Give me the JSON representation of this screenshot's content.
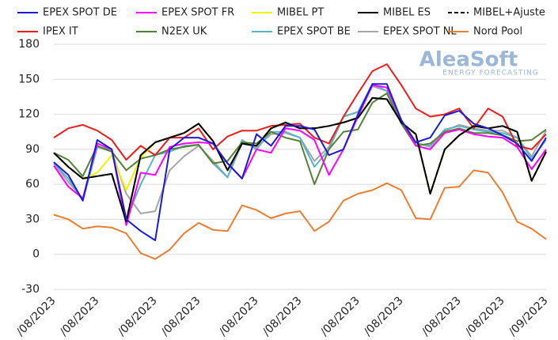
{
  "chart_data": {
    "type": "line",
    "watermark": {
      "brand": "AleaSoft",
      "tagline": "ENERGY FORECASTING"
    },
    "categories": [
      "/08/2023",
      null,
      null,
      "/08/2023",
      null,
      null,
      null,
      "/08/2023",
      null,
      null,
      "/08/2023",
      null,
      null,
      null,
      "/08/2023",
      null,
      null,
      "/08/2023",
      null,
      null,
      null,
      "/08/2023",
      null,
      null,
      "/08/2023",
      null,
      null,
      null,
      "/08/2023",
      null,
      null,
      "/08/2023",
      null,
      null,
      "/09/2023"
    ],
    "ylim": [
      -30,
      180
    ],
    "yticks": [
      -30,
      0,
      30,
      60,
      90,
      120,
      150,
      180
    ],
    "grid": true,
    "series": [
      {
        "name": "Nord Pool",
        "color": "#ed7d31",
        "values": [
          34,
          30,
          22,
          24,
          23,
          18,
          1,
          -4,
          4,
          18,
          27,
          21,
          20,
          42,
          38,
          31,
          35,
          37,
          20,
          28,
          46,
          52,
          55,
          61,
          55,
          31,
          30,
          57,
          58,
          72,
          70,
          53,
          28,
          22,
          13
        ]
      },
      {
        "name": "EPEX SPOT NL",
        "color": "#a6a6a6",
        "values": [
          78,
          62,
          48,
          92,
          88,
          52,
          35,
          37,
          72,
          84,
          93,
          80,
          66,
          95,
          92,
          103,
          104,
          100,
          80,
          92,
          118,
          122,
          144,
          140,
          112,
          96,
          92,
          106,
          111,
          108,
          106,
          106,
          100,
          84,
          106
        ]
      },
      {
        "name": "EPEX SPOT BE",
        "color": "#5ab4c8",
        "values": [
          78,
          65,
          46,
          92,
          90,
          30,
          60,
          85,
          88,
          93,
          94,
          78,
          66,
          98,
          90,
          105,
          105,
          100,
          75,
          90,
          118,
          122,
          146,
          140,
          113,
          95,
          93,
          107,
          110,
          107,
          105,
          104,
          100,
          82,
          98
        ]
      },
      {
        "name": "N2EX UK",
        "color": "#548235",
        "values": [
          87,
          81,
          67,
          93,
          88,
          72,
          82,
          85,
          90,
          92,
          94,
          78,
          80,
          96,
          95,
          105,
          100,
          97,
          60,
          90,
          105,
          107,
          130,
          138,
          112,
          93,
          95,
          105,
          108,
          104,
          104,
          102,
          97,
          98,
          107
        ]
      },
      {
        "name": "IPEX IT",
        "color": "#ee1c1c",
        "values": [
          100,
          108,
          111,
          106,
          98,
          81,
          93,
          85,
          100,
          100,
          108,
          90,
          101,
          106,
          106,
          110,
          111,
          112,
          100,
          95,
          118,
          138,
          157,
          163,
          145,
          125,
          118,
          120,
          125,
          108,
          125,
          118,
          93,
          90,
          103
        ]
      },
      {
        "name": "MIBEL PT",
        "color": "#f2f200",
        "values": [
          87,
          75,
          65,
          70,
          85,
          55,
          83,
          96,
          100,
          104,
          112,
          97,
          72,
          95,
          93,
          108,
          113,
          108,
          108,
          110,
          113,
          117,
          134,
          133,
          113,
          103,
          52,
          90,
          102,
          110,
          108,
          110,
          105,
          63,
          88
        ]
      },
      {
        "name": "EPEX SPOT FR",
        "color": "#ff00ff",
        "values": [
          76,
          58,
          48,
          95,
          90,
          25,
          70,
          68,
          92,
          95,
          96,
          95,
          78,
          65,
          90,
          87,
          108,
          106,
          98,
          68,
          90,
          118,
          145,
          143,
          115,
          93,
          90,
          104,
          107,
          103,
          101,
          100,
          92,
          73,
          90
        ]
      },
      {
        "name": "MIBEL+Ajuste",
        "color": "#000000",
        "dash": true,
        "values": [
          87,
          75,
          65,
          67,
          69,
          28,
          85,
          96,
          100,
          104,
          112,
          97,
          72,
          95,
          93,
          108,
          113,
          108,
          108,
          110,
          113,
          117,
          134,
          133,
          113,
          103,
          52,
          90,
          102,
          110,
          108,
          110,
          105,
          63,
          88
        ]
      },
      {
        "name": "MIBEL ES",
        "color": "#000000",
        "values": [
          87,
          75,
          65,
          67,
          69,
          28,
          85,
          96,
          100,
          104,
          112,
          97,
          72,
          95,
          93,
          108,
          113,
          108,
          108,
          110,
          113,
          117,
          134,
          133,
          113,
          103,
          52,
          90,
          102,
          110,
          108,
          110,
          105,
          63,
          88
        ]
      },
      {
        "name": "EPEX SPOT DE",
        "color": "#1a1adc",
        "values": [
          79,
          68,
          46,
          98,
          90,
          30,
          20,
          12,
          90,
          100,
          100,
          95,
          78,
          65,
          103,
          93,
          110,
          110,
          107,
          85,
          90,
          120,
          146,
          146,
          115,
          96,
          100,
          119,
          123,
          112,
          108,
          102,
          95,
          80,
          100
        ]
      }
    ]
  }
}
